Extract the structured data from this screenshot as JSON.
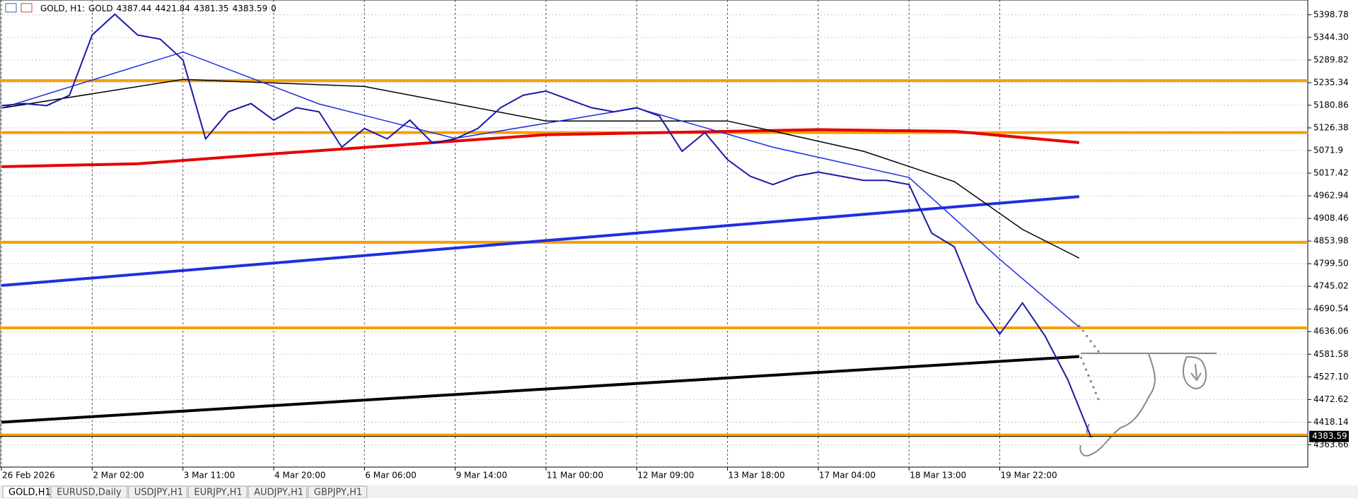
{
  "header": {
    "symbol": "GOLD, H1:",
    "description": "GOLD",
    "open": 4387.44,
    "high": 4421.84,
    "low": 4381.35,
    "close": 4383.59,
    "volume": 0
  },
  "chart_data": {
    "type": "line",
    "categories": [
      "26 Feb 2026",
      null,
      null,
      null,
      "2 Mar 02:00",
      null,
      null,
      null,
      "3 Mar 11:00",
      null,
      null,
      null,
      "4 Mar 20:00",
      null,
      null,
      null,
      "6 Mar 06:00",
      null,
      null,
      null,
      "9 Mar 14:00",
      null,
      null,
      null,
      "11 Mar 00:00",
      null,
      null,
      null,
      "12 Mar 09:00",
      null,
      null,
      null,
      "13 Mar 18:00",
      null,
      null,
      null,
      "17 Mar 04:00",
      null,
      null,
      null,
      "18 Mar 13:00",
      null,
      null,
      null,
      "19 Mar 22:00",
      null,
      null,
      null,
      null
    ],
    "values": [
      5180,
      5185,
      5180,
      5205,
      5350,
      5400,
      5350,
      5340,
      5290,
      5100,
      5165,
      5185,
      5145,
      5175,
      5165,
      5080,
      5125,
      5100,
      5145,
      5090,
      5100,
      5125,
      5175,
      5205,
      5215,
      5195,
      5175,
      5165,
      5175,
      5155,
      5070,
      5115,
      5050,
      5010,
      4990,
      5010,
      5020,
      5010,
      5000,
      5000,
      4990,
      4873,
      4840,
      4705,
      4630,
      4705,
      4625,
      4520,
      4385
    ],
    "color": "#1a1aa8",
    "overlays": [
      {
        "color": "#e80000",
        "width": 4,
        "x": [
          0,
          6,
          12,
          24,
          36,
          42,
          47.5
        ],
        "values": [
          5033,
          5040,
          5064,
          5110,
          5122,
          5118,
          5091
        ]
      },
      {
        "color": "#1f2fe0",
        "width": 4,
        "x": [
          0,
          47.5
        ],
        "values": [
          4747,
          4961
        ]
      },
      {
        "color": "#000000",
        "width": 4,
        "x": [
          0,
          47.5
        ],
        "values": [
          4418,
          4576
        ]
      },
      {
        "color": "#000000",
        "width": 1.5,
        "x": [
          0,
          8,
          16,
          24,
          32,
          38,
          42,
          45,
          47.5
        ],
        "values": [
          5174,
          5243,
          5226,
          5143,
          5143,
          5070,
          4997,
          4882,
          4813
        ]
      },
      {
        "color": "#1f2fe0",
        "width": 1.5,
        "x": [
          0,
          8,
          14,
          20,
          28,
          34,
          40,
          44,
          47.5
        ],
        "values": [
          5174,
          5309,
          5184,
          5101,
          5174,
          5080,
          5007,
          4810,
          4647
        ]
      }
    ],
    "levels": [
      5240,
      5115,
      4851,
      4645,
      4387
    ],
    "level_color": "#f5a000",
    "last_price": 4383.59,
    "ylim": [
      4309.9,
      5434.2
    ],
    "yticks": [
      5398.78,
      {
        "value": 5344.3,
        "label": "5344.30"
      },
      5289.82,
      5235.34,
      5180.86,
      5126.38,
      5071.9,
      5017.42,
      4962.94,
      4908.46,
      4853.98,
      {
        "value": 4799.5,
        "label": "4799.50"
      },
      4745.02,
      4690.54,
      4636.06,
      4581.58,
      {
        "value": 4527.1,
        "label": "4527.10"
      },
      4472.62,
      4418.14,
      4363.66
    ],
    "grid": true
  },
  "tabs": [
    "GOLD,H1",
    "EURUSD,Daily",
    "USDJPY,H1",
    "EURJPY,H1",
    "AUDJPY,H1",
    "GBPJPY,H1"
  ]
}
